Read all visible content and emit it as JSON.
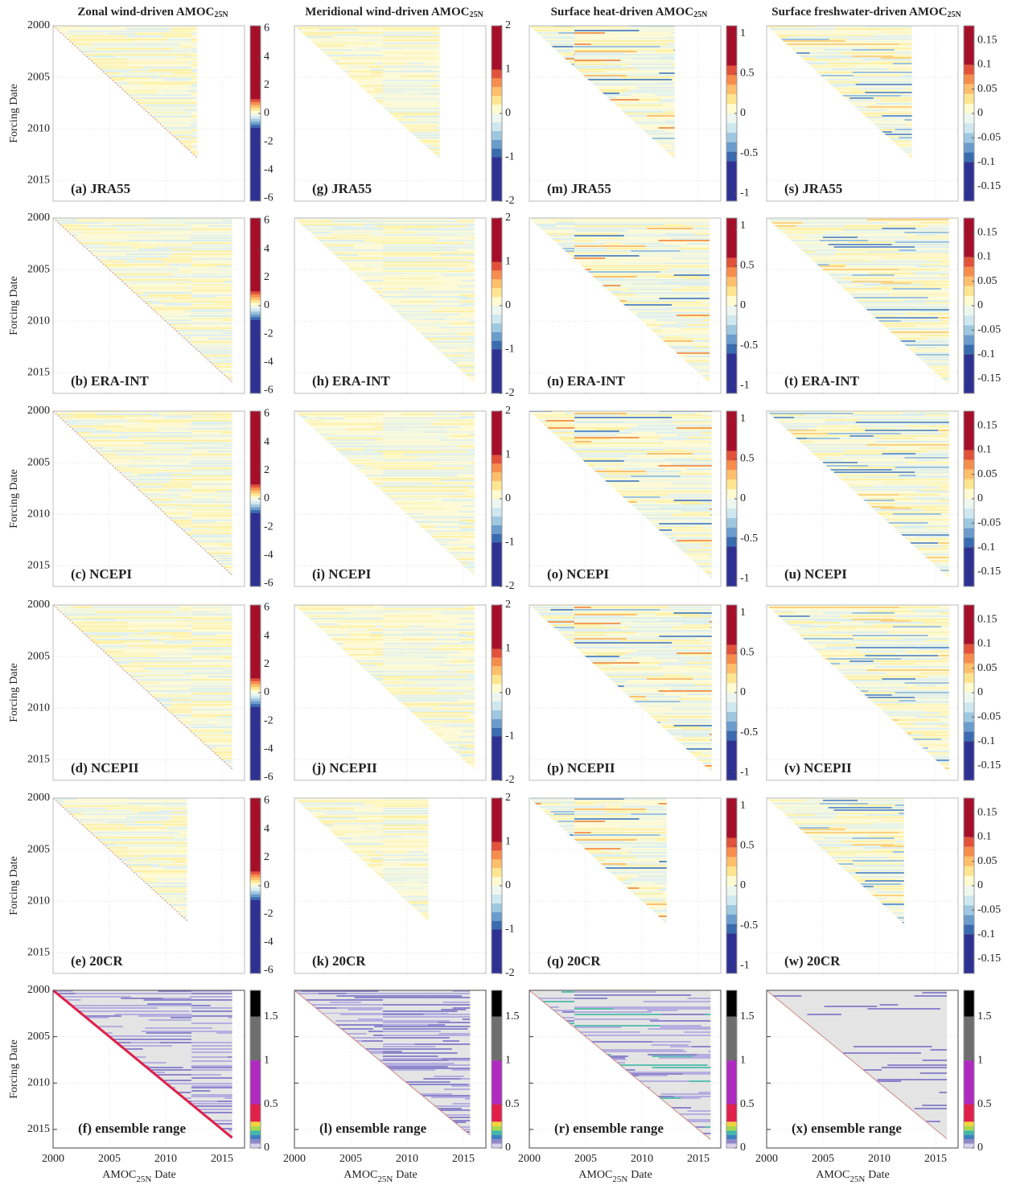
{
  "columns": [
    {
      "title": "Zonal wind-driven AMOC",
      "title_sub": "25N",
      "colorbar": {
        "lim": [
          -6.2,
          6.2
        ],
        "ticks": [
          6,
          4,
          2,
          0,
          -2,
          -4,
          -6
        ],
        "levels": [
          -6.2,
          -1,
          -0.8,
          -0.6,
          -0.4,
          -0.2,
          0,
          0.2,
          0.4,
          0.6,
          0.8,
          1,
          6.2
        ]
      }
    },
    {
      "title": "Meridional wind-driven AMOC",
      "title_sub": "25N",
      "colorbar": {
        "lim": [
          -2,
          2
        ],
        "ticks": [
          2,
          1,
          0,
          -1,
          -2
        ],
        "levels": [
          -2,
          -1,
          -0.8,
          -0.6,
          -0.4,
          -0.2,
          0,
          0.2,
          0.4,
          0.6,
          0.8,
          1,
          2
        ]
      }
    },
    {
      "title": "Surface heat-driven AMOC",
      "title_sub": "25N",
      "colorbar": {
        "lim": [
          -1.1,
          1.1
        ],
        "ticks": [
          1,
          0.5,
          0,
          -0.5,
          -1
        ],
        "levels": [
          -1.1,
          -0.6,
          -0.48,
          -0.36,
          -0.24,
          -0.12,
          0,
          0.12,
          0.24,
          0.36,
          0.48,
          0.6,
          1.1
        ]
      }
    },
    {
      "title": "Surface freshwater-driven AMOC",
      "title_sub": "25N",
      "colorbar": {
        "lim": [
          -0.18,
          0.18
        ],
        "ticks": [
          0.15,
          0.1,
          0.05,
          0,
          -0.05,
          -0.1,
          -0.15
        ],
        "levels": [
          -0.18,
          -0.1,
          -0.08,
          -0.06,
          -0.04,
          -0.02,
          0,
          0.02,
          0.04,
          0.06,
          0.08,
          0.1,
          0.18
        ]
      }
    }
  ],
  "colorbar_colors": [
    "#2e3192",
    "#3a6bb0",
    "#6a9ccc",
    "#9ec8e0",
    "#cfe8ef",
    "#eef7ef",
    "#fffbd0",
    "#ffe590",
    "#fdbf6a",
    "#f78d4d",
    "#e2513a",
    "#a50f2a"
  ],
  "ensemble_colorbar": {
    "lim": [
      0,
      1.8
    ],
    "ticks": [
      1.5,
      1,
      0.5,
      0
    ],
    "levels": [
      0,
      0.05,
      0.1,
      0.15,
      0.2,
      0.25,
      0.3,
      0.5,
      1,
      1.5,
      1.8
    ],
    "colors": [
      "#d8d0ec",
      "#8e88c8",
      "#3c7fc0",
      "#3fb8a8",
      "#a8d84a",
      "#f2d23a",
      "#e0204a",
      "#b02ac0",
      "#6e6e6e",
      "#000000"
    ]
  },
  "axis": {
    "xlim": [
      2000,
      2017
    ],
    "ylim": [
      2000,
      2017
    ],
    "xticks": [
      2000,
      2005,
      2010,
      2015
    ],
    "yticks": [
      2000,
      2005,
      2010,
      2015
    ],
    "ylabel": "Forcing Date",
    "xlabel": "AMOC",
    "xlabel_sub": "25N",
    "xlabel_tail": "Date"
  },
  "rows": [
    {
      "panels": [
        {
          "label": "(a) JRA55",
          "end": 2012.8
        },
        {
          "label": "(g) JRA55",
          "end": 2012.9
        },
        {
          "label": "(m) JRA55",
          "end": 2012.9
        },
        {
          "label": "(s) JRA55",
          "end": 2012.9
        }
      ]
    },
    {
      "panels": [
        {
          "label": "(b) ERA-INT",
          "end": 2015.9
        },
        {
          "label": "(h) ERA-INT",
          "end": 2016
        },
        {
          "label": "(n) ERA-INT",
          "end": 2016
        },
        {
          "label": "(t) ERA-INT",
          "end": 2016.2
        }
      ]
    },
    {
      "panels": [
        {
          "label": "(c) NCEPI",
          "end": 2015.9
        },
        {
          "label": "(i) NCEPI",
          "end": 2016
        },
        {
          "label": "(o) NCEPI",
          "end": 2016.2
        },
        {
          "label": "(u) NCEPI",
          "end": 2016.2
        }
      ]
    },
    {
      "panels": [
        {
          "label": "(d) NCEPII",
          "end": 2015.9
        },
        {
          "label": "(j) NCEPII",
          "end": 2016
        },
        {
          "label": "(p) NCEPII",
          "end": 2016.2
        },
        {
          "label": "(v) NCEPII",
          "end": 2016.2
        }
      ]
    },
    {
      "panels": [
        {
          "label": "(e) 20CR",
          "end": 2011.9
        },
        {
          "label": "(k) 20CR",
          "end": 2011.9
        },
        {
          "label": "(q) 20CR",
          "end": 2012.2
        },
        {
          "label": "(w) 20CR",
          "end": 2012.2
        }
      ]
    },
    {
      "panels": [
        {
          "label": "(f) ensemble range",
          "end": 2015.9
        },
        {
          "label": "(l) ensemble range",
          "end": 2015.6
        },
        {
          "label": "(r) ensemble range",
          "end": 2016.1
        },
        {
          "label": "(x) ensemble range",
          "end": 2016
        }
      ]
    }
  ]
}
